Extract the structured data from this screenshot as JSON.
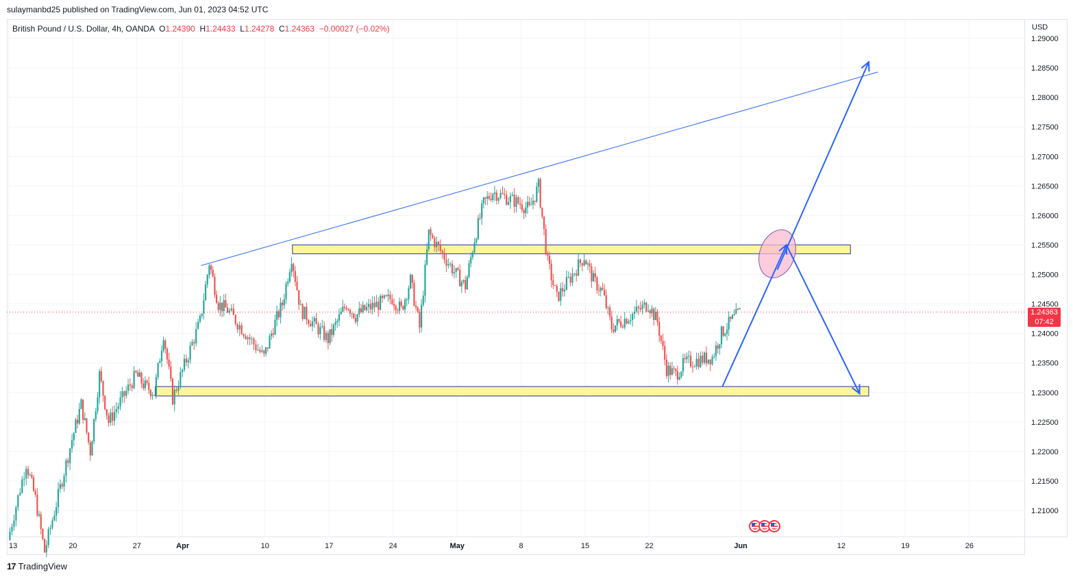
{
  "header": {
    "caption": "sulaymanbd25 published on TradingView.com, Jun 01, 2023 04:52 UTC"
  },
  "legend": {
    "symbol": "British Pound / U.S. Dollar, 4h, OANDA",
    "o_label": "O",
    "o_value": "1.24390",
    "h_label": "H",
    "h_value": "1.24433",
    "l_label": "L",
    "l_value": "1.24278",
    "c_label": "C",
    "c_value": "1.24363",
    "change": "−0.00027 (−0.02%)"
  },
  "price_axis": {
    "currency": "USD",
    "last_price": "1.24363",
    "countdown": "07:42"
  },
  "footer": {
    "brand": "TradingView"
  },
  "colors": {
    "up": "#26a69a",
    "down": "#ef5350",
    "trend": "#2962ff",
    "zone_fill": "#fff59d",
    "zone_border": "#1e3a8a",
    "ellipse_fill": "#f8bbd0",
    "ellipse_border": "#7e57c2",
    "last_price": "#f23645"
  },
  "chart_data": {
    "type": "candlestick",
    "title": "",
    "ylim": [
      1.2025,
      1.2915
    ],
    "y_ticks": [
      "1.29000",
      "1.28500",
      "1.28000",
      "1.27500",
      "1.27000",
      "1.26500",
      "1.26000",
      "1.25500",
      "1.25000",
      "1.24500",
      "1.24000",
      "1.23500",
      "1.23000",
      "1.22500",
      "1.22000",
      "1.21500",
      "1.21000"
    ],
    "x_ticks": [
      "13",
      "20",
      "27",
      "Apr",
      "10",
      "17",
      "24",
      "May",
      "8",
      "15",
      "22",
      "Jun",
      "12",
      "19",
      "26"
    ],
    "price_path": [
      [
        "2023-03-13",
        1.205
      ],
      [
        "2023-03-15",
        1.218
      ],
      [
        "2023-03-16",
        1.212
      ],
      [
        "2023-03-17",
        1.203
      ],
      [
        "2023-03-20",
        1.222
      ],
      [
        "2023-03-21",
        1.228
      ],
      [
        "2023-03-22",
        1.22
      ],
      [
        "2023-03-23",
        1.233
      ],
      [
        "2023-03-24",
        1.225
      ],
      [
        "2023-03-27",
        1.233
      ],
      [
        "2023-03-28",
        1.231
      ],
      [
        "2023-03-29",
        1.23
      ],
      [
        "2023-03-30",
        1.24
      ],
      [
        "2023-03-31",
        1.229
      ],
      [
        "2023-04-03",
        1.242
      ],
      [
        "2023-04-04",
        1.252
      ],
      [
        "2023-04-05",
        1.245
      ],
      [
        "2023-04-06",
        1.244
      ],
      [
        "2023-04-10",
        1.236
      ],
      [
        "2023-04-11",
        1.241
      ],
      [
        "2023-04-12",
        1.245
      ],
      [
        "2023-04-13",
        1.253
      ],
      [
        "2023-04-14",
        1.244
      ],
      [
        "2023-04-17",
        1.239
      ],
      [
        "2023-04-18",
        1.242
      ],
      [
        "2023-04-19",
        1.245
      ],
      [
        "2023-04-20",
        1.243
      ],
      [
        "2023-04-21",
        1.244
      ],
      [
        "2023-04-24",
        1.246
      ],
      [
        "2023-04-25",
        1.244
      ],
      [
        "2023-04-26",
        1.249
      ],
      [
        "2023-04-27",
        1.241
      ],
      [
        "2023-04-28",
        1.257
      ],
      [
        "2023-05-01",
        1.25
      ],
      [
        "2023-05-02",
        1.248
      ],
      [
        "2023-05-03",
        1.256
      ],
      [
        "2023-05-04",
        1.262
      ],
      [
        "2023-05-05",
        1.264
      ],
      [
        "2023-05-08",
        1.262
      ],
      [
        "2023-05-09",
        1.261
      ],
      [
        "2023-05-10",
        1.265
      ],
      [
        "2023-05-11",
        1.252
      ],
      [
        "2023-05-12",
        1.246
      ],
      [
        "2023-05-15",
        1.253
      ],
      [
        "2023-05-16",
        1.249
      ],
      [
        "2023-05-17",
        1.247
      ],
      [
        "2023-05-18",
        1.241
      ],
      [
        "2023-05-19",
        1.242
      ],
      [
        "2023-05-22",
        1.245
      ],
      [
        "2023-05-23",
        1.242
      ],
      [
        "2023-05-24",
        1.234
      ],
      [
        "2023-05-25",
        1.233
      ],
      [
        "2023-05-26",
        1.235
      ],
      [
        "2023-05-29",
        1.236
      ],
      [
        "2023-05-30",
        1.24
      ],
      [
        "2023-05-31",
        1.242
      ],
      [
        "2023-06-01",
        1.2436
      ]
    ],
    "last_price": 1.24363,
    "annotations": {
      "resistance_zone": {
        "from": "2023-04-13",
        "to": "2023-06-13",
        "low": 1.2535,
        "high": 1.255
      },
      "support_zone": {
        "from": "2023-03-29",
        "to": "2023-06-15",
        "low": 1.2294,
        "high": 1.231
      },
      "trend_line": {
        "from": [
          "2023-04-03",
          1.2515
        ],
        "to": [
          "2023-06-16",
          1.2843
        ]
      },
      "arrow_up_1": {
        "from": [
          "2023-05-30",
          1.231
        ],
        "to": [
          "2023-06-06",
          1.255
        ]
      },
      "arrow_down": {
        "from": [
          "2023-06-06",
          1.255
        ],
        "to": [
          "2023-06-14",
          1.2298
        ]
      },
      "arrow_up_2": {
        "from": [
          "2023-06-05",
          1.2508
        ],
        "to": [
          "2023-06-15",
          1.286
        ]
      },
      "ellipse": {
        "center": [
          "2023-06-05",
          1.2535
        ],
        "rx_days": 1.0,
        "ry_price": 0.0042
      }
    }
  }
}
